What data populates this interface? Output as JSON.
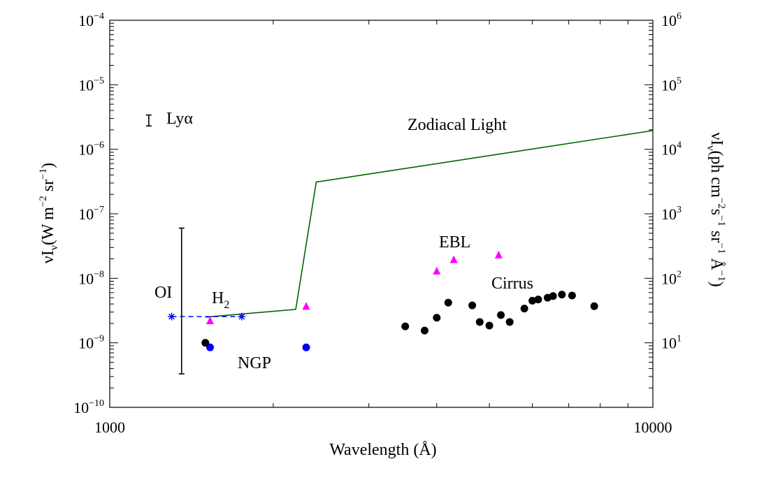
{
  "chart_data": {
    "type": "scatter",
    "xlabel": "Wavelength (Å)",
    "ylabel_left": {
      "prefix": "νI",
      "sub": "ν",
      "unit": "(W m",
      "e1": "−2",
      "mid": " sr",
      "e2": "−1",
      "end": ")"
    },
    "ylabel_right": {
      "prefix": "νI",
      "sub": "ν",
      "unit": "(ph cm",
      "e1": "−2",
      "p2": "s",
      "e2": "−1",
      "p3": " sr",
      "e3": "−1",
      "p4": " Å",
      "e4": "−1",
      "end": ")"
    },
    "x_scale": "log",
    "y_scale": "log",
    "xlim": [
      1000,
      10000
    ],
    "ylim": [
      1e-10,
      0.0001
    ],
    "ylim_right": [
      1,
      1000000.0
    ],
    "x_tick_labels": [
      "1000",
      "10000"
    ],
    "y_tick_labels": [
      {
        "base": "10",
        "exp": "−10"
      },
      {
        "base": "10",
        "exp": "−9"
      },
      {
        "base": "10",
        "exp": "−8"
      },
      {
        "base": "10",
        "exp": "−7"
      },
      {
        "base": "10",
        "exp": "−6"
      },
      {
        "base": "10",
        "exp": "−5"
      },
      {
        "base": "10",
        "exp": "−4"
      }
    ],
    "y_right_tick_labels": [
      {
        "base": "10",
        "exp": "1"
      },
      {
        "base": "10",
        "exp": "2"
      },
      {
        "base": "10",
        "exp": "3"
      },
      {
        "base": "10",
        "exp": "4"
      },
      {
        "base": "10",
        "exp": "5"
      },
      {
        "base": "10",
        "exp": "6"
      }
    ],
    "series": [
      {
        "name": "Zodiacal Light",
        "style": "line",
        "color": "#006400",
        "points": [
          [
            1500,
            2.5e-09
          ],
          [
            2200,
            3.3e-09
          ],
          [
            2400,
            3.1e-07
          ],
          [
            10000,
            1.95e-06
          ]
        ]
      },
      {
        "name": "H₂",
        "style": "dashed-line-asterisk",
        "color": "#0000ff",
        "points": [
          [
            1300,
            2.55e-09
          ],
          [
            1750,
            2.55e-09
          ]
        ]
      },
      {
        "name": "EBL",
        "style": "triangle",
        "color": "#ff00ff",
        "points": [
          [
            1530,
            2.2e-09
          ],
          [
            2300,
            3.7e-09
          ],
          [
            4000,
            1.3e-08
          ],
          [
            4300,
            1.95e-08
          ],
          [
            5200,
            2.3e-08
          ]
        ]
      },
      {
        "name": "NGP",
        "style": "circle",
        "color": "#0000ff",
        "points": [
          [
            1530,
            8.5e-10
          ],
          [
            2300,
            8.5e-10
          ]
        ]
      },
      {
        "name": "Cirrus",
        "style": "circle",
        "color": "#000000",
        "points": [
          [
            1500,
            1e-09
          ],
          [
            3500,
            1.8e-09
          ],
          [
            3800,
            1.55e-09
          ],
          [
            4000,
            2.45e-09
          ],
          [
            4200,
            4.2e-09
          ],
          [
            4650,
            3.8e-09
          ],
          [
            4800,
            2.1e-09
          ],
          [
            5000,
            1.85e-09
          ],
          [
            5250,
            2.7e-09
          ],
          [
            5450,
            2.1e-09
          ],
          [
            5800,
            3.4e-09
          ],
          [
            6000,
            4.5e-09
          ],
          [
            6150,
            4.7e-09
          ],
          [
            6400,
            5e-09
          ],
          [
            6550,
            5.3e-09
          ],
          [
            6800,
            5.6e-09
          ],
          [
            7100,
            5.4e-09
          ],
          [
            7800,
            3.7e-09
          ]
        ]
      }
    ],
    "error_bars": [
      {
        "name": "Lyα",
        "x": 1180,
        "ylow": 2.3e-06,
        "yhigh": 3.4e-06,
        "color": "#000000"
      },
      {
        "name": "OI",
        "x": 1356,
        "ylow": 3.3e-10,
        "yhigh": 6e-08,
        "color": "#000000"
      }
    ],
    "annotations": {
      "zodiacal": {
        "text": "Zodiacal Light",
        "color": "#006400"
      },
      "lya": {
        "text": "Lyα",
        "color": "#000000"
      },
      "ebl": {
        "text": "EBL",
        "color": "#ff00ff"
      },
      "cirrus": {
        "text": "Cirrus",
        "color": "#000000"
      },
      "oi": {
        "text": "OI",
        "color": "#000000"
      },
      "h2": {
        "base": "H",
        "sub": "2",
        "color": "#0000ff"
      },
      "ngp": {
        "text": "NGP",
        "color": "#0000ff"
      }
    }
  }
}
